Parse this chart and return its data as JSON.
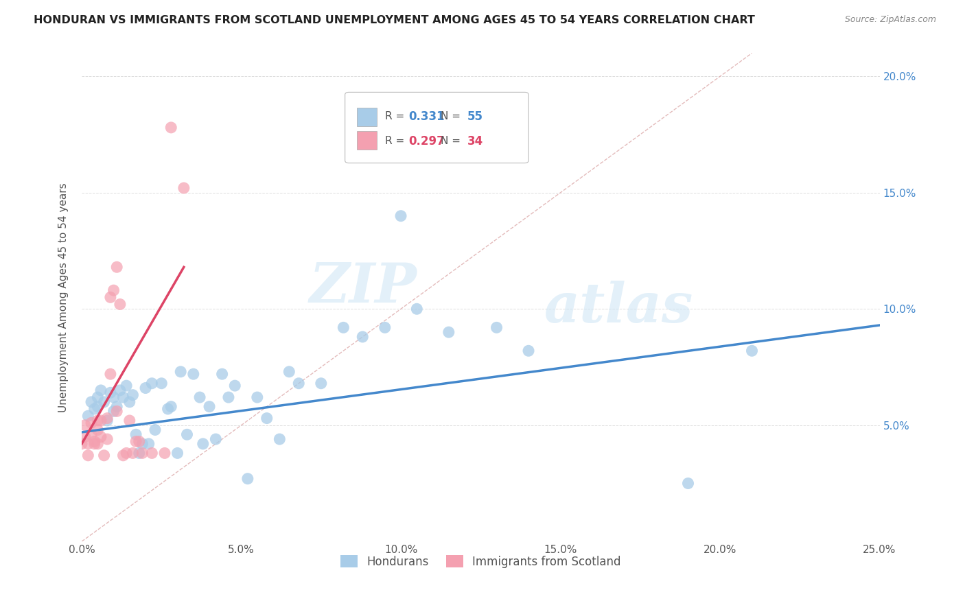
{
  "title": "HONDURAN VS IMMIGRANTS FROM SCOTLAND UNEMPLOYMENT AMONG AGES 45 TO 54 YEARS CORRELATION CHART",
  "source": "Source: ZipAtlas.com",
  "ylabel": "Unemployment Among Ages 45 to 54 years",
  "xlim": [
    0.0,
    0.25
  ],
  "ylim": [
    0.0,
    0.21
  ],
  "xticks": [
    0.0,
    0.05,
    0.1,
    0.15,
    0.2,
    0.25
  ],
  "yticks": [
    0.0,
    0.05,
    0.1,
    0.15,
    0.2
  ],
  "xtick_labels": [
    "0.0%",
    "5.0%",
    "10.0%",
    "15.0%",
    "20.0%",
    "25.0%"
  ],
  "ytick_labels_right": [
    "",
    "5.0%",
    "10.0%",
    "15.0%",
    "20.0%"
  ],
  "blue_color": "#a8cce8",
  "pink_color": "#f4a0b0",
  "blue_line_color": "#4488cc",
  "pink_line_color": "#dd4466",
  "diag_line_color": "#ddaaaa",
  "watermark_zip": "ZIP",
  "watermark_atlas": "atlas",
  "hondurans_x": [
    0.002,
    0.003,
    0.004,
    0.005,
    0.005,
    0.006,
    0.007,
    0.008,
    0.009,
    0.01,
    0.01,
    0.011,
    0.012,
    0.013,
    0.014,
    0.015,
    0.016,
    0.017,
    0.018,
    0.019,
    0.02,
    0.021,
    0.022,
    0.023,
    0.025,
    0.027,
    0.028,
    0.03,
    0.031,
    0.033,
    0.035,
    0.037,
    0.038,
    0.04,
    0.042,
    0.044,
    0.046,
    0.048,
    0.052,
    0.055,
    0.058,
    0.062,
    0.065,
    0.068,
    0.075,
    0.082,
    0.088,
    0.095,
    0.1,
    0.105,
    0.115,
    0.13,
    0.14,
    0.19,
    0.21
  ],
  "hondurans_y": [
    0.054,
    0.06,
    0.057,
    0.062,
    0.058,
    0.065,
    0.06,
    0.052,
    0.064,
    0.056,
    0.062,
    0.058,
    0.065,
    0.062,
    0.067,
    0.06,
    0.063,
    0.046,
    0.038,
    0.042,
    0.066,
    0.042,
    0.068,
    0.048,
    0.068,
    0.057,
    0.058,
    0.038,
    0.073,
    0.046,
    0.072,
    0.062,
    0.042,
    0.058,
    0.044,
    0.072,
    0.062,
    0.067,
    0.027,
    0.062,
    0.053,
    0.044,
    0.073,
    0.068,
    0.068,
    0.092,
    0.088,
    0.092,
    0.14,
    0.1,
    0.09,
    0.092,
    0.082,
    0.025,
    0.082
  ],
  "scotland_x": [
    0.0,
    0.001,
    0.001,
    0.002,
    0.002,
    0.003,
    0.003,
    0.004,
    0.004,
    0.005,
    0.005,
    0.005,
    0.006,
    0.006,
    0.007,
    0.008,
    0.008,
    0.009,
    0.009,
    0.01,
    0.011,
    0.011,
    0.012,
    0.013,
    0.014,
    0.015,
    0.016,
    0.017,
    0.018,
    0.019,
    0.022,
    0.026,
    0.028,
    0.032
  ],
  "scotland_y": [
    0.042,
    0.045,
    0.05,
    0.037,
    0.042,
    0.046,
    0.051,
    0.042,
    0.043,
    0.048,
    0.042,
    0.052,
    0.045,
    0.052,
    0.037,
    0.044,
    0.053,
    0.105,
    0.072,
    0.108,
    0.056,
    0.118,
    0.102,
    0.037,
    0.038,
    0.052,
    0.038,
    0.043,
    0.043,
    0.038,
    0.038,
    0.038,
    0.178,
    0.152
  ],
  "blue_trendline_x": [
    0.0,
    0.25
  ],
  "blue_trendline_y": [
    0.047,
    0.093
  ],
  "pink_trendline_x": [
    0.0,
    0.032
  ],
  "pink_trendline_y": [
    0.042,
    0.118
  ],
  "legend_blue_R": "0.331",
  "legend_blue_N": "55",
  "legend_pink_R": "0.297",
  "legend_pink_N": "34",
  "legend_text_color_blue": "#4488cc",
  "legend_text_color_pink": "#dd4466",
  "legend_label_color": "#555555"
}
